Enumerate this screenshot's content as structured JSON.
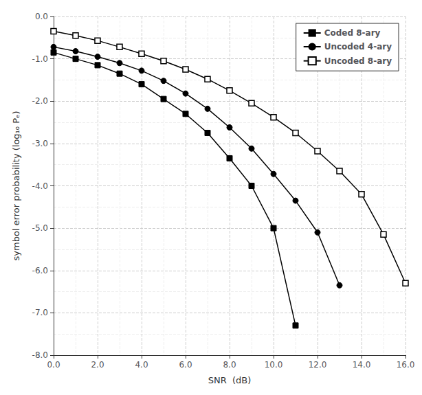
{
  "chart_data": {
    "type": "line",
    "xlabel": "SNR  (dB)",
    "ylabel": "symbol error probability (log₁₀ Pₑ)",
    "series": [
      {
        "name": "Coded 8-ary",
        "color": "#000000",
        "marker": "square",
        "x": [
          0,
          1,
          2,
          3,
          4,
          5,
          6,
          7,
          8,
          9,
          10,
          11
        ],
        "values": [
          -0.85,
          -1.0,
          -1.15,
          -1.35,
          -1.6,
          -1.95,
          -2.3,
          -2.75,
          -3.35,
          -4.0,
          -5.0,
          -7.3
        ]
      },
      {
        "name": "Uncoded 4-ary",
        "color": "#000000",
        "marker": "circle",
        "x": [
          0,
          1,
          2,
          3,
          4,
          5,
          6,
          7,
          8,
          9,
          10,
          11,
          12,
          13
        ],
        "values": [
          -0.72,
          -0.82,
          -0.95,
          -1.1,
          -1.28,
          -1.52,
          -1.82,
          -2.18,
          -2.62,
          -3.12,
          -3.72,
          -4.35,
          -5.1,
          -6.35
        ]
      },
      {
        "name": "Uncoded 8-ary",
        "color": "#000000",
        "marker": "open_square",
        "x": [
          0,
          1,
          2,
          3,
          4,
          5,
          6,
          7,
          8,
          9,
          10,
          11,
          12,
          13,
          14,
          15,
          16
        ],
        "values": [
          -0.35,
          -0.45,
          -0.57,
          -0.72,
          -0.88,
          -1.05,
          -1.25,
          -1.48,
          -1.75,
          -2.05,
          -2.38,
          -2.75,
          -3.18,
          -3.65,
          -4.2,
          -5.15,
          -6.3
        ]
      }
    ],
    "xlim": [
      0,
      16
    ],
    "ylim": [
      -8,
      0
    ],
    "xticks": [
      {
        "value": 0,
        "label": "0.0"
      },
      {
        "value": 2,
        "label": "2.0"
      },
      {
        "value": 4,
        "label": "4.0"
      },
      {
        "value": 6,
        "label": "6.0"
      },
      {
        "value": 8,
        "label": "8.0"
      },
      {
        "value": 10,
        "label": "10.0"
      },
      {
        "value": 12,
        "label": "12.0"
      },
      {
        "value": 14,
        "label": "14.0"
      },
      {
        "value": 16,
        "label": "16.0"
      }
    ],
    "yticks": [
      {
        "value": 0,
        "label": "0.0"
      },
      {
        "value": -1,
        "label": "-1.0"
      },
      {
        "value": -2,
        "label": "-2.0"
      },
      {
        "value": -3,
        "label": "-3.0"
      },
      {
        "value": -4,
        "label": "-4.0"
      },
      {
        "value": -5,
        "label": "-5.0"
      },
      {
        "value": -6,
        "label": "-6.0"
      },
      {
        "value": -7,
        "label": "-7.0"
      },
      {
        "value": -8,
        "label": "-8.0"
      }
    ],
    "grid": true,
    "legend": "upper right"
  }
}
